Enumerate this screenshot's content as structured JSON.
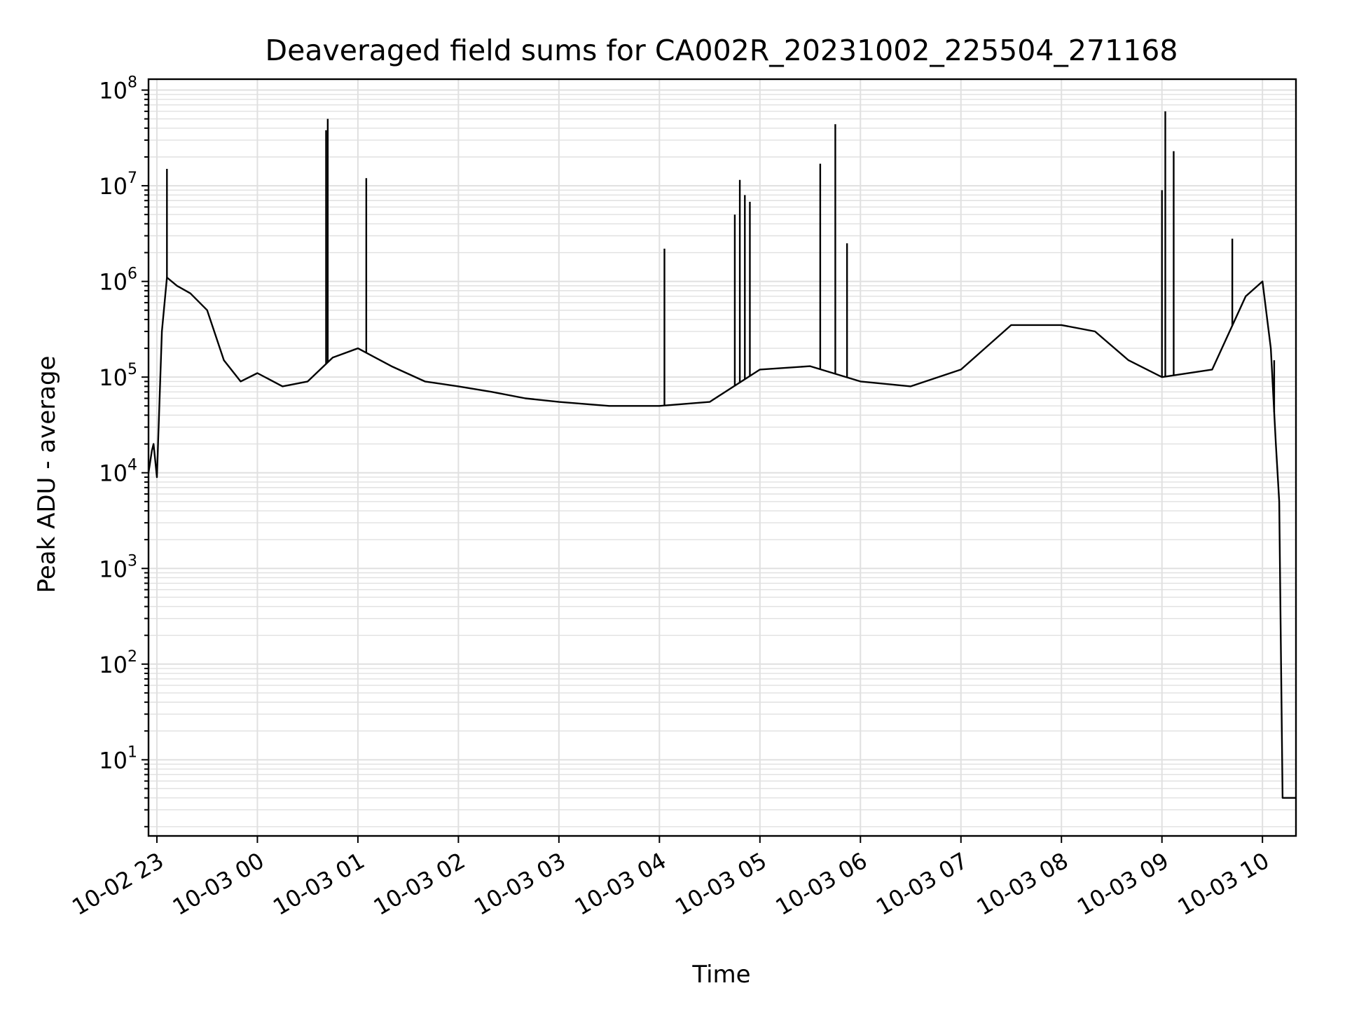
{
  "chart_data": {
    "type": "line",
    "title": "Deaveraged field sums for CA002R_20231002_225504_271168",
    "xlabel": "Time",
    "ylabel": "Peak ADU - average",
    "yscale": "log",
    "ylim": [
      1.6,
      130000000
    ],
    "xlim": [
      "2023-10-02 22:55",
      "2023-10-03 10:20"
    ],
    "grid": true,
    "line_color": "#000000",
    "grid_color": "#e0e0e0",
    "y_ticks": [
      {
        "base": "10",
        "exp": "1",
        "value": 10
      },
      {
        "base": "10",
        "exp": "2",
        "value": 100
      },
      {
        "base": "10",
        "exp": "3",
        "value": 1000
      },
      {
        "base": "10",
        "exp": "4",
        "value": 10000
      },
      {
        "base": "10",
        "exp": "5",
        "value": 100000
      },
      {
        "base": "10",
        "exp": "6",
        "value": 1000000
      },
      {
        "base": "10",
        "exp": "7",
        "value": 10000000
      },
      {
        "base": "10",
        "exp": "8",
        "value": 100000000
      }
    ],
    "x_ticks": [
      {
        "label": "10-02 23",
        "time": "2023-10-02 23:00"
      },
      {
        "label": "10-03 00",
        "time": "2023-10-03 00:00"
      },
      {
        "label": "10-03 01",
        "time": "2023-10-03 01:00"
      },
      {
        "label": "10-03 02",
        "time": "2023-10-03 02:00"
      },
      {
        "label": "10-03 03",
        "time": "2023-10-03 03:00"
      },
      {
        "label": "10-03 04",
        "time": "2023-10-03 04:00"
      },
      {
        "label": "10-03 05",
        "time": "2023-10-03 05:00"
      },
      {
        "label": "10-03 06",
        "time": "2023-10-03 06:00"
      },
      {
        "label": "10-03 07",
        "time": "2023-10-03 07:00"
      },
      {
        "label": "10-03 08",
        "time": "2023-10-03 08:00"
      },
      {
        "label": "10-03 09",
        "time": "2023-10-03 09:00"
      },
      {
        "label": "10-03 10",
        "time": "2023-10-03 10:00"
      }
    ],
    "series": [
      {
        "points": [
          [
            "2023-10-02 22:55",
            10000
          ],
          [
            "2023-10-02 22:57",
            17000
          ],
          [
            "2023-10-02 22:58",
            20000
          ],
          [
            "2023-10-02 23:00",
            9000
          ],
          [
            "2023-10-02 23:03",
            300000
          ],
          [
            "2023-10-02 23:06",
            1100000
          ],
          [
            "2023-10-02 23:12",
            900000
          ],
          [
            "2023-10-02 23:20",
            750000
          ],
          [
            "2023-10-02 23:30",
            500000
          ],
          [
            "2023-10-02 23:40",
            150000
          ],
          [
            "2023-10-02 23:50",
            90000
          ],
          [
            "2023-10-03 00:00",
            110000
          ],
          [
            "2023-10-03 00:15",
            80000
          ],
          [
            "2023-10-03 00:30",
            90000
          ],
          [
            "2023-10-03 00:45",
            160000
          ],
          [
            "2023-10-03 01:00",
            200000
          ],
          [
            "2023-10-03 01:20",
            130000
          ],
          [
            "2023-10-03 01:40",
            90000
          ],
          [
            "2023-10-03 02:00",
            80000
          ],
          [
            "2023-10-03 02:20",
            70000
          ],
          [
            "2023-10-03 02:40",
            60000
          ],
          [
            "2023-10-03 03:00",
            55000
          ],
          [
            "2023-10-03 03:30",
            50000
          ],
          [
            "2023-10-03 04:00",
            50000
          ],
          [
            "2023-10-03 04:30",
            55000
          ],
          [
            "2023-10-03 05:00",
            120000
          ],
          [
            "2023-10-03 05:30",
            130000
          ],
          [
            "2023-10-03 06:00",
            90000
          ],
          [
            "2023-10-03 06:30",
            80000
          ],
          [
            "2023-10-03 07:00",
            120000
          ],
          [
            "2023-10-03 07:30",
            350000
          ],
          [
            "2023-10-03 08:00",
            350000
          ],
          [
            "2023-10-03 08:20",
            300000
          ],
          [
            "2023-10-03 08:40",
            150000
          ],
          [
            "2023-10-03 09:00",
            100000
          ],
          [
            "2023-10-03 09:30",
            120000
          ],
          [
            "2023-10-03 09:50",
            700000
          ],
          [
            "2023-10-03 10:00",
            1000000
          ],
          [
            "2023-10-03 10:05",
            200000
          ],
          [
            "2023-10-03 10:08",
            20000
          ],
          [
            "2023-10-03 10:10",
            5000
          ],
          [
            "2023-10-03 10:12",
            4
          ],
          [
            "2023-10-03 10:20",
            4
          ]
        ]
      }
    ],
    "spikes": [
      [
        "2023-10-02 23:06",
        15000000
      ],
      [
        "2023-10-03 00:42",
        50000000
      ],
      [
        "2023-10-03 00:41",
        38000000
      ],
      [
        "2023-10-03 01:05",
        12000000
      ],
      [
        "2023-10-03 04:03",
        2200000
      ],
      [
        "2023-10-03 04:45",
        5000000
      ],
      [
        "2023-10-03 04:48",
        11500000
      ],
      [
        "2023-10-03 04:51",
        8000000
      ],
      [
        "2023-10-03 04:54",
        6800000
      ],
      [
        "2023-10-03 05:36",
        17000000
      ],
      [
        "2023-10-03 05:45",
        44000000
      ],
      [
        "2023-10-03 05:52",
        2500000
      ],
      [
        "2023-10-03 09:00",
        9000000
      ],
      [
        "2023-10-03 09:02",
        60000000
      ],
      [
        "2023-10-03 09:07",
        23000000
      ],
      [
        "2023-10-03 09:42",
        2800000
      ],
      [
        "2023-10-03 10:07",
        150000
      ]
    ]
  }
}
